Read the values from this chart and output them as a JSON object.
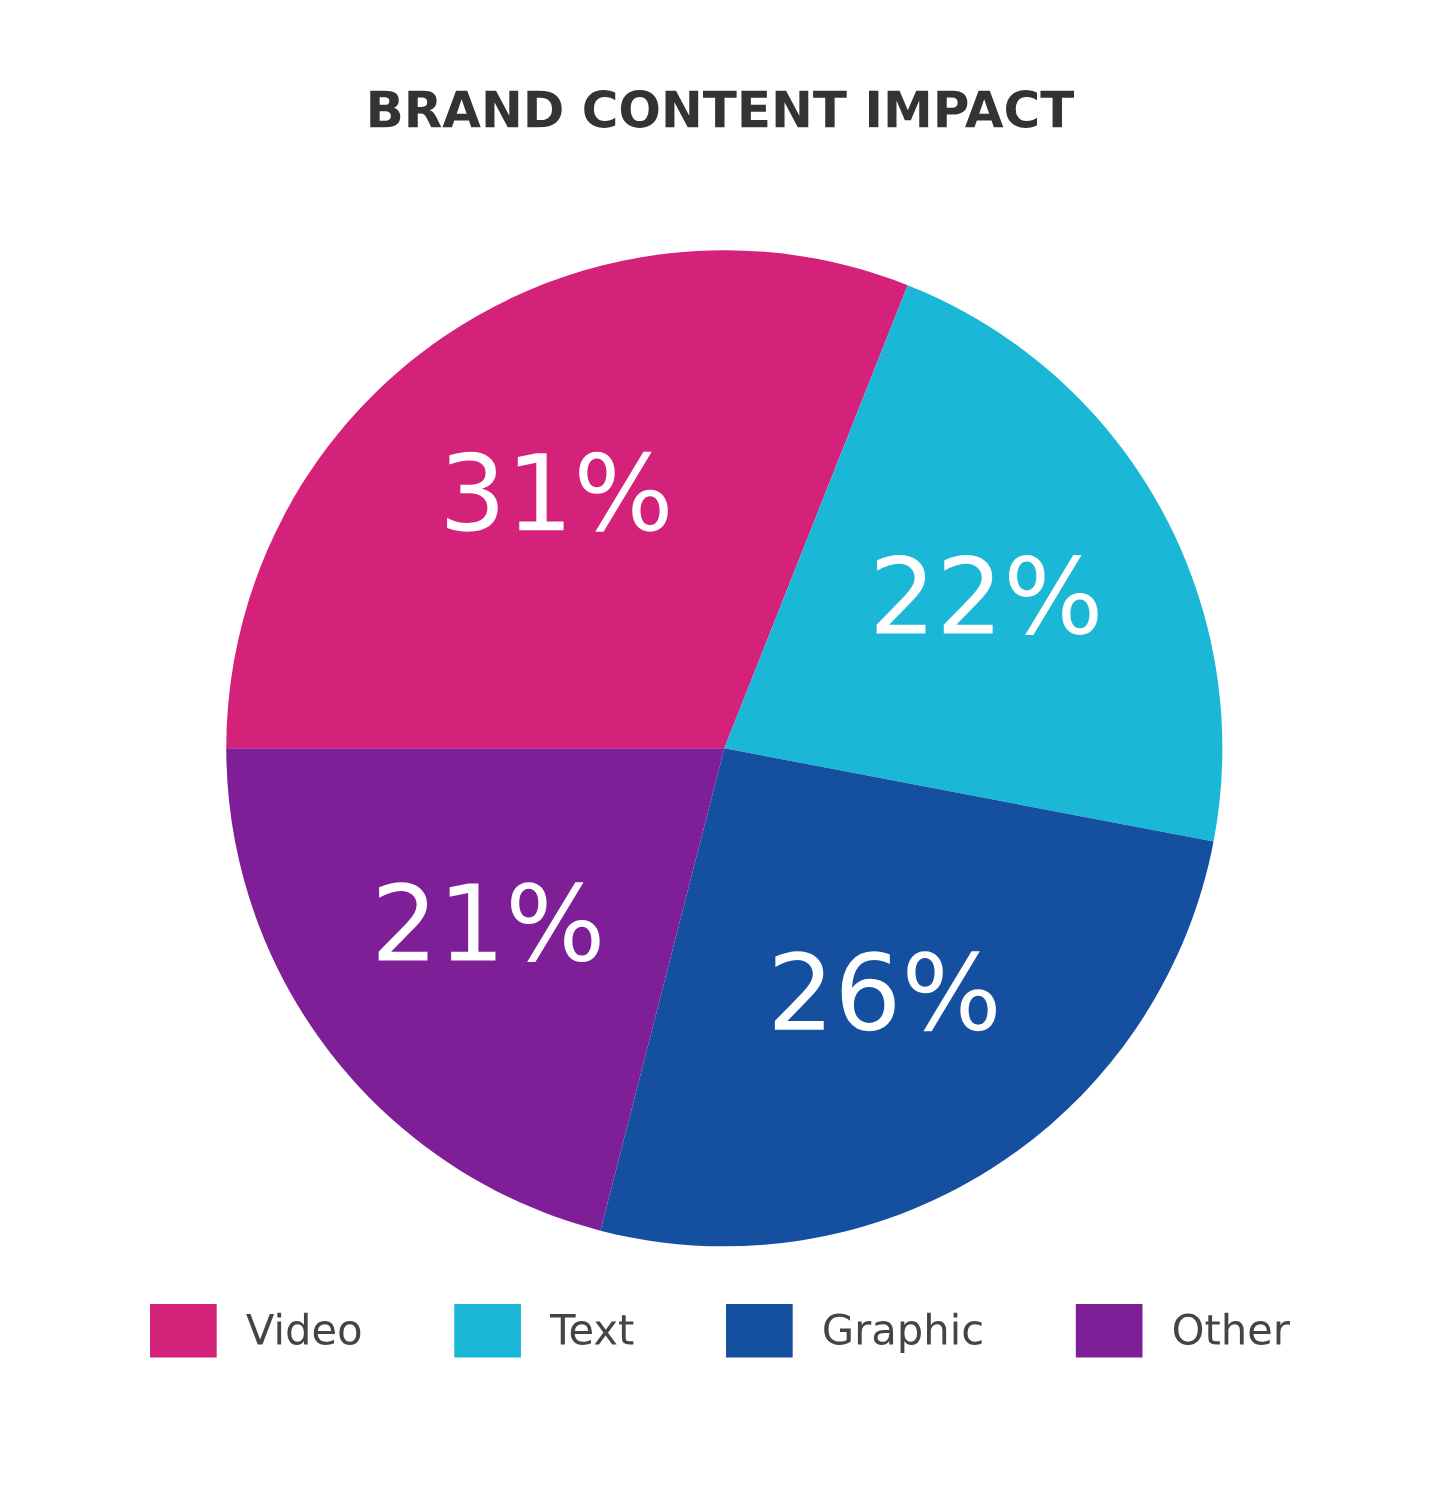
{
  "chart_data": {
    "type": "pie",
    "title": "BRAND CONTENT IMPACT",
    "categories": [
      "Video",
      "Text",
      "Graphic",
      "Other"
    ],
    "values": [
      31,
      22,
      26,
      21
    ],
    "colors": [
      "#d4217a",
      "#1ab8d6",
      "#1550a0",
      "#7e1f97"
    ],
    "value_labels": [
      "31%",
      "22%",
      "26%",
      "21%"
    ],
    "legend": "bottom"
  }
}
